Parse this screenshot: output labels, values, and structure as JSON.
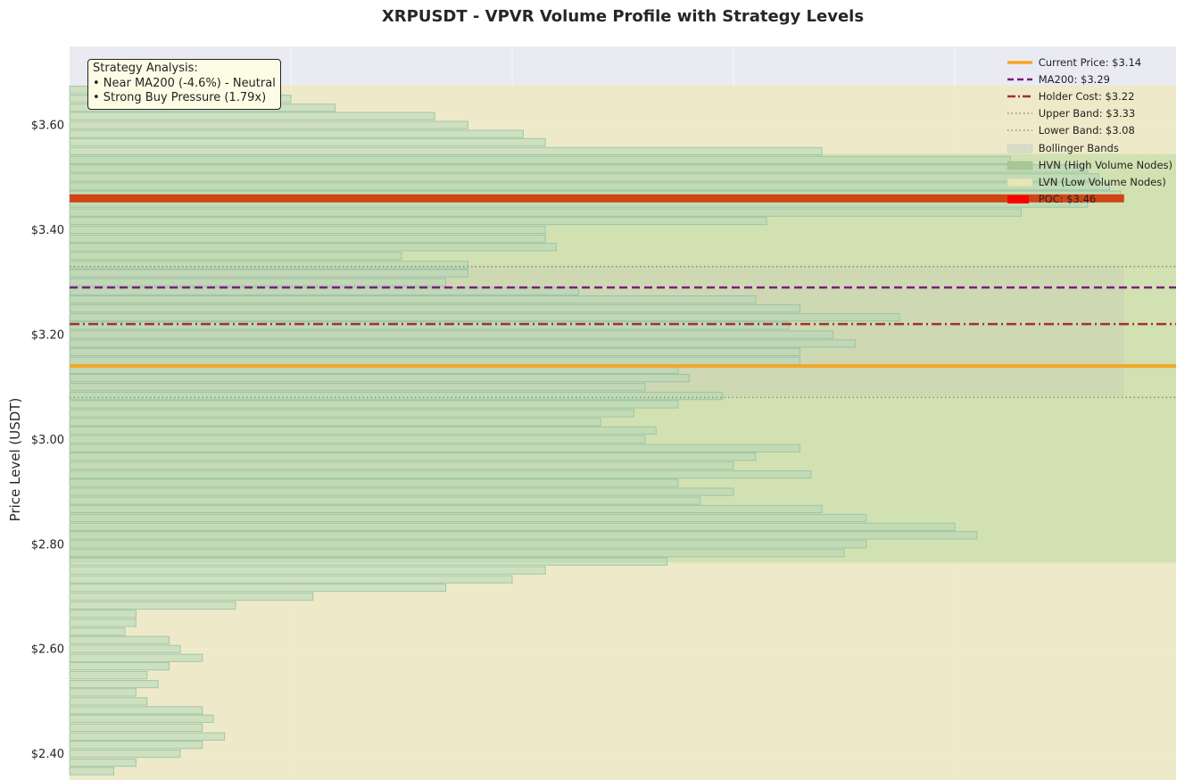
{
  "chart_data": {
    "type": "bar",
    "orientation": "horizontal",
    "title": "XRPUSDT - VPVR Volume Profile with Strategy Levels",
    "ylabel": "Price Level (USDT)",
    "xlabel": "",
    "ylim": [
      2.35,
      3.75
    ],
    "yticks": [
      2.4,
      2.6,
      2.8,
      3.0,
      3.2,
      3.4,
      3.6
    ],
    "ytick_labels": [
      "$2.40",
      "$2.60",
      "$2.80",
      "$3.00",
      "$3.20",
      "$3.40",
      "$3.60"
    ],
    "xlim": [
      0,
      100
    ],
    "bin_size": 0.0167,
    "price_levels": [
      3.667,
      3.65,
      3.633,
      3.617,
      3.6,
      3.583,
      3.567,
      3.55,
      3.533,
      3.517,
      3.5,
      3.483,
      3.467,
      3.45,
      3.433,
      3.417,
      3.4,
      3.383,
      3.367,
      3.35,
      3.333,
      3.317,
      3.3,
      3.283,
      3.267,
      3.25,
      3.233,
      3.217,
      3.2,
      3.183,
      3.167,
      3.15,
      3.133,
      3.117,
      3.1,
      3.083,
      3.067,
      3.05,
      3.033,
      3.017,
      3.0,
      2.983,
      2.967,
      2.95,
      2.933,
      2.917,
      2.9,
      2.883,
      2.867,
      2.85,
      2.833,
      2.817,
      2.8,
      2.783,
      2.767,
      2.75,
      2.733,
      2.717,
      2.7,
      2.683,
      2.667,
      2.65,
      2.633,
      2.617,
      2.6,
      2.583,
      2.567,
      2.55,
      2.533,
      2.517,
      2.5,
      2.483,
      2.467,
      2.45,
      2.433,
      2.417,
      2.4,
      2.383,
      2.367
    ],
    "volumes": [
      18,
      20,
      24,
      33,
      36,
      41,
      43,
      68,
      85,
      92,
      93,
      94,
      95,
      92,
      86,
      63,
      43,
      43,
      44,
      30,
      36,
      36,
      34,
      46,
      62,
      66,
      75,
      65,
      69,
      71,
      66,
      66,
      55,
      56,
      52,
      59,
      55,
      51,
      48,
      53,
      52,
      66,
      62,
      60,
      67,
      55,
      60,
      57,
      68,
      72,
      80,
      82,
      72,
      70,
      54,
      43,
      40,
      34,
      22,
      15,
      6,
      6,
      5,
      9,
      10,
      12,
      9,
      7,
      8,
      6,
      7,
      12,
      13,
      12,
      14,
      12,
      10,
      6,
      4
    ],
    "levels": {
      "current_price": 3.14,
      "ma200": 3.29,
      "holder_cost": 3.22,
      "upper_band": 3.33,
      "lower_band": 3.08,
      "poc": 3.46
    },
    "hvn_range": [
      2.765,
      3.545
    ],
    "bollinger_range": [
      3.083,
      3.33
    ],
    "legend": [
      "Current Price: $3.14",
      "MA200: $3.29",
      "Holder Cost: $3.22",
      "Upper Band: $3.33",
      "Lower Band: $3.08",
      "Bollinger Bands",
      "HVN (High Volume Nodes)",
      "LVN (Low Volume Nodes)",
      "POC: $3.46"
    ],
    "legend_position": "upper right",
    "annotation": [
      "Strategy Analysis:",
      "• Near MA200 (-4.6%) - Neutral",
      "• Strong Buy Pressure (1.79x)"
    ],
    "grid": true,
    "colors": {
      "background": "#eaeaf2",
      "bar_fill": "#b7d7b7",
      "bar_stroke": "#8fbfa6",
      "current_price": "#f5a623",
      "ma200": "#7b1f7e",
      "holder_cost": "#a0342a",
      "bands": "#7a9a6a",
      "poc": "#d04416",
      "lvn": "#eeeac4",
      "hvn": "#c8dda8"
    }
  }
}
